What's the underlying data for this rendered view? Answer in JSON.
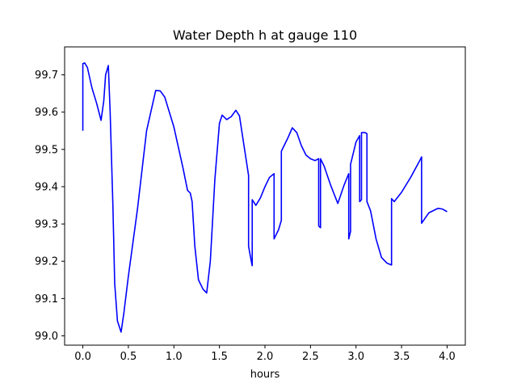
{
  "chart_data": {
    "type": "line",
    "title": "Water Depth h at gauge 110",
    "xlabel": "hours",
    "ylabel": "",
    "xlim": [
      -0.2,
      4.2
    ],
    "ylim": [
      98.975,
      99.775
    ],
    "x_ticks": [
      0.0,
      0.5,
      1.0,
      1.5,
      2.0,
      2.5,
      3.0,
      3.5,
      4.0
    ],
    "x_tick_labels": [
      "0.0",
      "0.5",
      "1.0",
      "1.5",
      "2.0",
      "2.5",
      "3.0",
      "3.5",
      "4.0"
    ],
    "y_ticks": [
      99.0,
      99.1,
      99.2,
      99.3,
      99.4,
      99.5,
      99.6,
      99.7
    ],
    "y_tick_labels": [
      "99.0",
      "99.1",
      "99.2",
      "99.3",
      "99.4",
      "99.5",
      "99.6",
      "99.7"
    ],
    "grid": false,
    "legend": "none",
    "series": [
      {
        "color": "#0000ff",
        "x": [
          0.0,
          0.0,
          0.02,
          0.05,
          0.1,
          0.15,
          0.2,
          0.23,
          0.25,
          0.28,
          0.3,
          0.33,
          0.35,
          0.38,
          0.42,
          0.45,
          0.5,
          0.6,
          0.7,
          0.8,
          0.85,
          0.9,
          1.0,
          1.1,
          1.15,
          1.18,
          1.2,
          1.23,
          1.27,
          1.32,
          1.36,
          1.4,
          1.45,
          1.5,
          1.53,
          1.58,
          1.63,
          1.68,
          1.72,
          1.77,
          1.82,
          1.82,
          1.85,
          1.86,
          1.86,
          1.9,
          1.95,
          2.0,
          2.05,
          2.1,
          2.1,
          2.15,
          2.18,
          2.18,
          2.25,
          2.3,
          2.35,
          2.4,
          2.45,
          2.5,
          2.55,
          2.59,
          2.59,
          2.6,
          2.61,
          2.61,
          2.65,
          2.72,
          2.8,
          2.87,
          2.92,
          2.92,
          2.94,
          2.94,
          3.0,
          3.04,
          3.04,
          3.06,
          3.06,
          3.1,
          3.12,
          3.12,
          3.16,
          3.22,
          3.28,
          3.34,
          3.39,
          3.39,
          3.42,
          3.5,
          3.6,
          3.7,
          3.72,
          3.72,
          3.8,
          3.9,
          3.95,
          4.0
        ],
        "y": [
          99.55,
          99.73,
          99.732,
          99.72,
          99.665,
          99.625,
          99.578,
          99.63,
          99.7,
          99.725,
          99.6,
          99.35,
          99.14,
          99.04,
          99.01,
          99.06,
          99.16,
          99.34,
          99.55,
          99.658,
          99.657,
          99.64,
          99.56,
          99.45,
          99.39,
          99.383,
          99.36,
          99.24,
          99.15,
          99.125,
          99.115,
          99.2,
          99.42,
          99.57,
          99.592,
          99.58,
          99.588,
          99.605,
          99.59,
          99.51,
          99.43,
          99.24,
          99.2,
          99.188,
          99.365,
          99.35,
          99.37,
          99.4,
          99.425,
          99.435,
          99.26,
          99.285,
          99.31,
          99.495,
          99.53,
          99.558,
          99.545,
          99.51,
          99.485,
          99.475,
          99.47,
          99.475,
          99.295,
          99.292,
          99.29,
          99.475,
          99.455,
          99.405,
          99.355,
          99.405,
          99.435,
          99.26,
          99.28,
          99.46,
          99.52,
          99.537,
          99.36,
          99.365,
          99.545,
          99.545,
          99.542,
          99.36,
          99.335,
          99.26,
          99.21,
          99.195,
          99.19,
          99.368,
          99.36,
          99.385,
          99.425,
          99.47,
          99.48,
          99.302,
          99.33,
          99.342,
          99.34,
          99.333
        ]
      }
    ]
  }
}
